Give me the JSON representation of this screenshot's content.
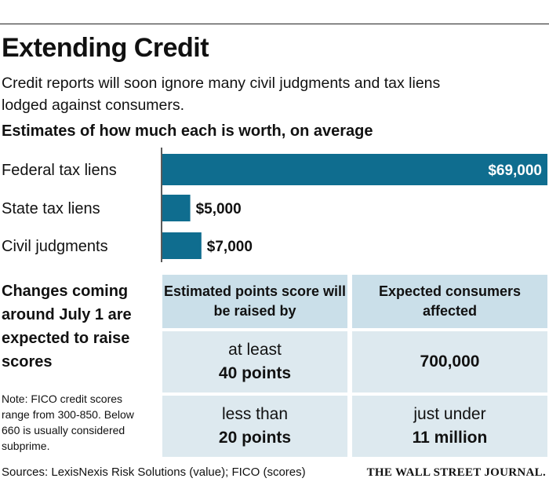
{
  "title": "Extending Credit",
  "subtitle": "Credit reports will soon ignore many civil judgments and tax liens lodged against consumers.",
  "chart_data": {
    "type": "bar",
    "orientation": "horizontal",
    "title": "Estimates of how much each is worth, on average",
    "categories": [
      "Federal tax liens",
      "State tax liens",
      "Civil judgments"
    ],
    "values": [
      69000,
      5000,
      7000
    ],
    "data_labels": [
      "$69,000",
      "$5,000",
      "$7,000"
    ],
    "xlim": [
      0,
      69000
    ],
    "color": "#0f6d8f"
  },
  "changes": {
    "heading": "Changes coming around July 1 are expected to raise scores"
  },
  "table": {
    "headers": [
      "Estimated points score will be raised by",
      "Expected consumers affected"
    ],
    "rows": [
      {
        "points_prefix": "at least",
        "points_value": "40 points",
        "consumers_prefix": "",
        "consumers_value": "700,000"
      },
      {
        "points_prefix": "less than",
        "points_value": "20 points",
        "consumers_prefix": "just under",
        "consumers_value": "11 million"
      }
    ]
  },
  "note": "Note: FICO credit scores range from 300-850. Below 660 is usually considered subprime.",
  "sources": "Sources: LexisNexis Risk Solutions (value); FICO (scores)",
  "publisher": "THE WALL STREET JOURNAL."
}
